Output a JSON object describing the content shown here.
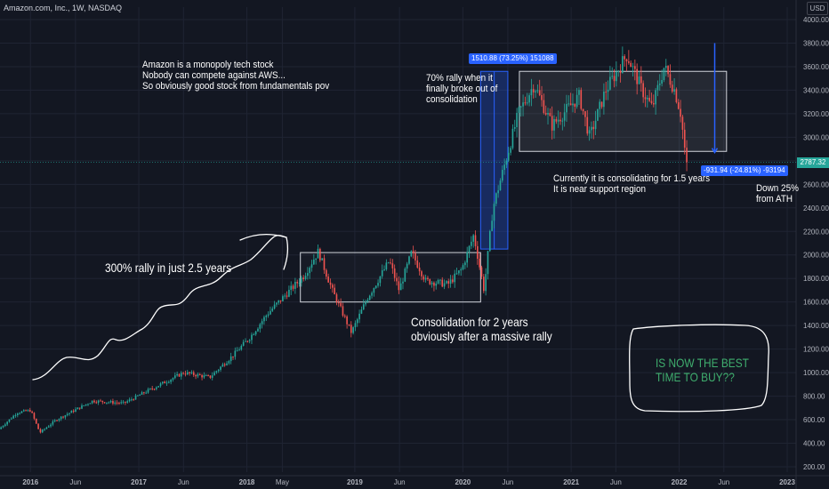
{
  "header": {
    "symbol_line": "Amazon.com, Inc., 1W, NASDAQ",
    "currency": "USD"
  },
  "colors": {
    "background": "#131722",
    "up_candle": "#26a69a",
    "down_candle": "#ef5350",
    "highlight_text": "#3fae6e",
    "measure_badge": "#2962ff",
    "current_price_line": "#26a69a"
  },
  "chart_data": {
    "type": "candlestick",
    "timeframe": "1W",
    "y_axis": {
      "min": 200,
      "max": 4000,
      "ticks": [
        200,
        400,
        600,
        800,
        1000,
        1200,
        1400,
        1600,
        1800,
        2000,
        2200,
        2400,
        2600,
        2800,
        3000,
        3200,
        3400,
        3600,
        3800,
        4000
      ],
      "tick_labels": [
        "200.00",
        "400.00",
        "600.00",
        "800.00",
        "1000.00",
        "1200.00",
        "1400.00",
        "1600.00",
        "1800.00",
        "2000.00",
        "2200.00",
        "2400.00",
        "2600.00",
        "2800.00",
        "3000.00",
        "3200.00",
        "3400.00",
        "3600.00",
        "3800.00",
        "4000.00"
      ]
    },
    "x_axis": {
      "range": [
        "2015-09-20",
        "2023-01-31"
      ],
      "ticks": [
        {
          "date": "2016-01-01",
          "label": "2016",
          "bold": true
        },
        {
          "date": "2016-06-01",
          "label": "Jun",
          "bold": false
        },
        {
          "date": "2017-01-01",
          "label": "2017",
          "bold": true
        },
        {
          "date": "2017-06-01",
          "label": "Jun",
          "bold": false
        },
        {
          "date": "2018-01-01",
          "label": "2018",
          "bold": true
        },
        {
          "date": "2018-05-01",
          "label": "May",
          "bold": false
        },
        {
          "date": "2019-01-01",
          "label": "2019",
          "bold": true
        },
        {
          "date": "2019-06-01",
          "label": "Jun",
          "bold": false
        },
        {
          "date": "2020-01-01",
          "label": "2020",
          "bold": true
        },
        {
          "date": "2020-06-01",
          "label": "Jun",
          "bold": false
        },
        {
          "date": "2021-01-01",
          "label": "2021",
          "bold": true
        },
        {
          "date": "2021-06-01",
          "label": "Jun",
          "bold": false
        },
        {
          "date": "2022-01-01",
          "label": "2022",
          "bold": true
        },
        {
          "date": "2022-06-01",
          "label": "Jun",
          "bold": false
        },
        {
          "date": "2023-01-01",
          "label": "2023",
          "bold": true
        }
      ]
    },
    "price_anchors": [
      {
        "date": "2015-09-20",
        "price": 520
      },
      {
        "date": "2015-11-20",
        "price": 660
      },
      {
        "date": "2016-01-05",
        "price": 680
      },
      {
        "date": "2016-02-05",
        "price": 490
      },
      {
        "date": "2016-04-01",
        "price": 600
      },
      {
        "date": "2016-08-01",
        "price": 760
      },
      {
        "date": "2016-11-15",
        "price": 740
      },
      {
        "date": "2017-01-15",
        "price": 820
      },
      {
        "date": "2017-06-05",
        "price": 1000
      },
      {
        "date": "2017-09-01",
        "price": 960
      },
      {
        "date": "2017-11-20",
        "price": 1150
      },
      {
        "date": "2018-01-15",
        "price": 1300
      },
      {
        "date": "2018-03-15",
        "price": 1500
      },
      {
        "date": "2018-07-15",
        "price": 1820
      },
      {
        "date": "2018-09-03",
        "price": 2030
      },
      {
        "date": "2018-10-20",
        "price": 1700
      },
      {
        "date": "2018-12-24",
        "price": 1340
      },
      {
        "date": "2019-02-15",
        "price": 1630
      },
      {
        "date": "2019-05-01",
        "price": 1950
      },
      {
        "date": "2019-06-03",
        "price": 1700
      },
      {
        "date": "2019-07-15",
        "price": 2020
      },
      {
        "date": "2019-09-01",
        "price": 1780
      },
      {
        "date": "2019-11-15",
        "price": 1750
      },
      {
        "date": "2020-01-01",
        "price": 1880
      },
      {
        "date": "2020-02-10",
        "price": 2170
      },
      {
        "date": "2020-03-16",
        "price": 1700
      },
      {
        "date": "2020-04-15",
        "price": 2400
      },
      {
        "date": "2020-07-10",
        "price": 3200
      },
      {
        "date": "2020-09-01",
        "price": 3450
      },
      {
        "date": "2020-11-01",
        "price": 3100
      },
      {
        "date": "2021-02-01",
        "price": 3350
      },
      {
        "date": "2021-03-08",
        "price": 3000
      },
      {
        "date": "2021-05-01",
        "price": 3400
      },
      {
        "date": "2021-07-12",
        "price": 3700
      },
      {
        "date": "2021-09-01",
        "price": 3400
      },
      {
        "date": "2021-10-05",
        "price": 3250
      },
      {
        "date": "2021-11-15",
        "price": 3600
      },
      {
        "date": "2021-12-20",
        "price": 3400
      },
      {
        "date": "2022-01-10",
        "price": 3200
      },
      {
        "date": "2022-01-28",
        "price": 2787.32
      }
    ],
    "consolidation_zones": [
      {
        "from": "2018-07-01",
        "to": "2020-03-01",
        "low": 1600,
        "high": 2020
      },
      {
        "from": "2020-07-10",
        "to": "2022-06-10",
        "low": 2880,
        "high": 3560
      }
    ],
    "measure_ranges": [
      {
        "from": "2020-03-01",
        "to": "2020-06-01",
        "low": 2050,
        "high": 3560,
        "label": "1510.88 (73.25%) 151088",
        "shaded": true
      },
      {
        "from": "2022-05-01",
        "to": "2022-05-01",
        "low": 2870,
        "high": 3800,
        "label": "-931.94 (-24.81%) -93194",
        "shaded": false
      }
    ],
    "current_price": {
      "value": 2787.32,
      "label": "2787.32"
    }
  },
  "annotations": {
    "fundamentals": "Amazon is a monopoly tech stock\nNobody can compete against AWS...\nSo obviously good stock from fundamentals pov",
    "rally_70": "70% rally when it\nfinally broke out of\nconsolidation",
    "consolidating_now": "Currently it is consolidating for 1.5 years\nIt is near support region",
    "down_25": "Down 25%\nfrom ATH",
    "rally_300": "300% rally in just 2.5 years",
    "consolidation_2y": "Consolidation for 2 years\nobviously after a massive rally",
    "best_time": "IS NOW THE BEST\nTIME TO BUY??"
  }
}
